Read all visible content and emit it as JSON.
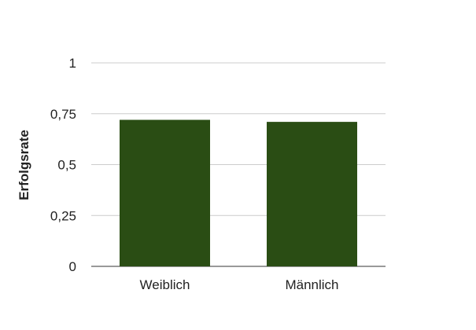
{
  "chart_data": {
    "type": "bar",
    "title": "",
    "xlabel": "",
    "ylabel": "Erfolgsrate",
    "categories": [
      "Weiblich",
      "Männlich"
    ],
    "values": [
      0.72,
      0.71
    ],
    "ylim": [
      0,
      1
    ],
    "yticks": [
      0,
      0.25,
      0.5,
      0.75,
      1
    ],
    "ytick_labels": [
      "0",
      "0,25",
      "0,5",
      "0,75",
      "1"
    ],
    "grid": true,
    "legend": "none",
    "bar_color": "#2a4d14"
  }
}
